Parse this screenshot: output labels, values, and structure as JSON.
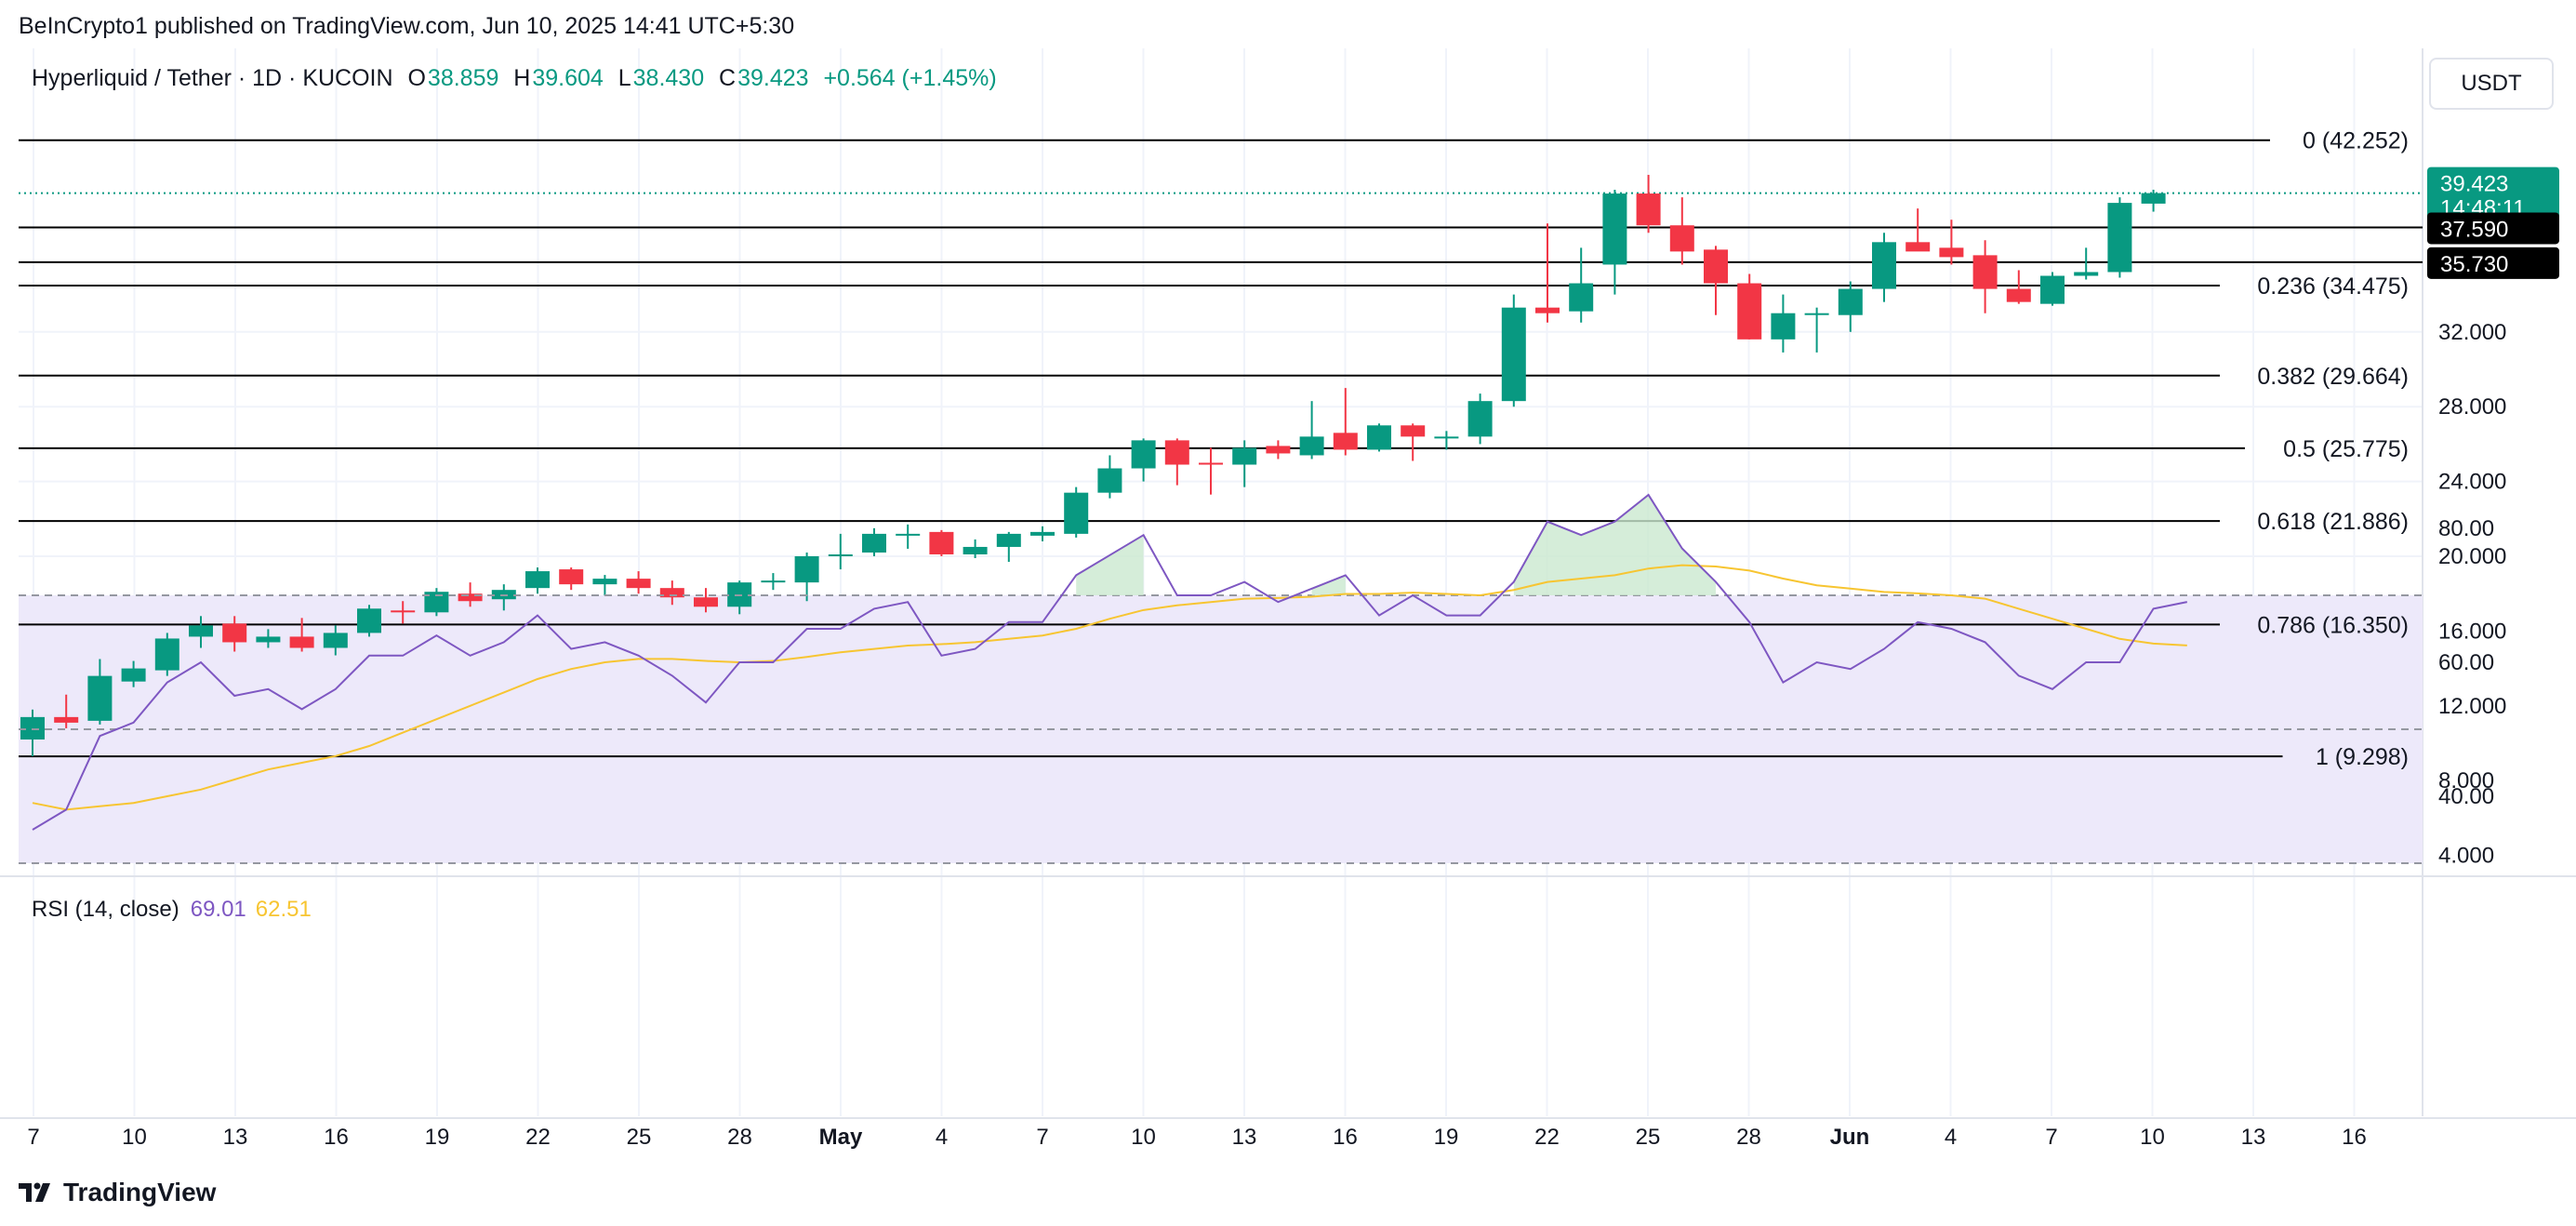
{
  "header": {
    "published": "BeInCrypto1 published on TradingView.com, Jun 10, 2025 14:41 UTC+5:30"
  },
  "symbol": {
    "title": "Hyperliquid / Tether · 1D · KUCOIN",
    "o_label": "O",
    "o": "38.859",
    "h_label": "H",
    "h": "39.604",
    "l_label": "L",
    "l": "38.430",
    "c_label": "C",
    "c": "39.423",
    "change": "+0.564 (+1.45%)"
  },
  "currency_button": "USDT",
  "price_labels": {
    "last_price": "39.423",
    "countdown": "14:48:11",
    "level_a": "37.590",
    "level_b": "35.730"
  },
  "colors": {
    "up": "#089981",
    "down": "#f23645",
    "rsi_line": "#7e57c2",
    "rsi_ma": "#f7c531",
    "rsi_band": "#ede9fa",
    "fib_line": "#000000"
  },
  "rsi": {
    "label": "RSI (14, close)",
    "value": "69.01",
    "ma_value": "62.51"
  },
  "footer": {
    "brand": "TradingView"
  },
  "chart_data": [
    {
      "type": "candlestick",
      "ylim": [
        4,
        44
      ],
      "y_ticks": [
        "4.000",
        "8.000",
        "12.000",
        "16.000",
        "20.000",
        "24.000",
        "28.000",
        "32.000"
      ],
      "x_ticks": [
        "7",
        "10",
        "13",
        "16",
        "19",
        "22",
        "25",
        "28",
        "May",
        "4",
        "7",
        "10",
        "13",
        "16",
        "19",
        "22",
        "25",
        "28",
        "Jun",
        "4",
        "7",
        "10",
        "13",
        "16"
      ],
      "fib_levels": [
        {
          "ratio": "0",
          "price": 42.252,
          "label": "0 (42.252)"
        },
        {
          "ratio": "0.236",
          "price": 34.475,
          "label": "0.236 (34.475)"
        },
        {
          "ratio": "0.382",
          "price": 29.664,
          "label": "0.382 (29.664)"
        },
        {
          "ratio": "0.5",
          "price": 25.775,
          "label": "0.5 (25.775)"
        },
        {
          "ratio": "0.618",
          "price": 21.886,
          "label": "0.618 (21.886)"
        },
        {
          "ratio": "0.786",
          "price": 16.35,
          "label": "0.786 (16.350)"
        },
        {
          "ratio": "1",
          "price": 9.298,
          "label": "1 (9.298)"
        }
      ],
      "horizontal_lines": [
        37.59,
        35.73
      ],
      "last_price": 39.423,
      "candles": [
        {
          "o": 10.2,
          "h": 11.8,
          "l": 9.3,
          "c": 11.4
        },
        {
          "o": 11.4,
          "h": 12.6,
          "l": 10.8,
          "c": 11.1
        },
        {
          "o": 11.2,
          "h": 14.5,
          "l": 11.0,
          "c": 13.6
        },
        {
          "o": 13.3,
          "h": 14.4,
          "l": 13.0,
          "c": 14.0
        },
        {
          "o": 13.9,
          "h": 15.9,
          "l": 13.6,
          "c": 15.6
        },
        {
          "o": 15.7,
          "h": 16.8,
          "l": 15.1,
          "c": 16.3
        },
        {
          "o": 16.4,
          "h": 16.8,
          "l": 14.9,
          "c": 15.4
        },
        {
          "o": 15.4,
          "h": 16.1,
          "l": 15.1,
          "c": 15.7
        },
        {
          "o": 15.7,
          "h": 16.7,
          "l": 14.9,
          "c": 15.1
        },
        {
          "o": 15.1,
          "h": 16.3,
          "l": 14.7,
          "c": 15.9
        },
        {
          "o": 15.9,
          "h": 17.4,
          "l": 15.7,
          "c": 17.2
        },
        {
          "o": 17.1,
          "h": 17.6,
          "l": 16.4,
          "c": 17.0
        },
        {
          "o": 17.0,
          "h": 18.3,
          "l": 16.8,
          "c": 18.1
        },
        {
          "o": 18.0,
          "h": 18.6,
          "l": 17.3,
          "c": 17.6
        },
        {
          "o": 17.7,
          "h": 18.5,
          "l": 17.1,
          "c": 18.2
        },
        {
          "o": 18.3,
          "h": 19.4,
          "l": 18.0,
          "c": 19.2
        },
        {
          "o": 19.3,
          "h": 19.4,
          "l": 18.2,
          "c": 18.5
        },
        {
          "o": 18.5,
          "h": 19.0,
          "l": 17.9,
          "c": 18.8
        },
        {
          "o": 18.8,
          "h": 19.2,
          "l": 18.0,
          "c": 18.3
        },
        {
          "o": 18.3,
          "h": 18.7,
          "l": 17.4,
          "c": 17.8
        },
        {
          "o": 17.8,
          "h": 18.3,
          "l": 17.0,
          "c": 17.3
        },
        {
          "o": 17.3,
          "h": 18.7,
          "l": 16.9,
          "c": 18.6
        },
        {
          "o": 18.6,
          "h": 19.1,
          "l": 18.2,
          "c": 18.7
        },
        {
          "o": 18.6,
          "h": 20.2,
          "l": 17.6,
          "c": 20.0
        },
        {
          "o": 20.0,
          "h": 21.2,
          "l": 19.3,
          "c": 20.1
        },
        {
          "o": 20.2,
          "h": 21.5,
          "l": 20.0,
          "c": 21.2
        },
        {
          "o": 21.2,
          "h": 21.7,
          "l": 20.4,
          "c": 21.2
        },
        {
          "o": 21.3,
          "h": 21.4,
          "l": 20.0,
          "c": 20.1
        },
        {
          "o": 20.1,
          "h": 20.9,
          "l": 19.9,
          "c": 20.5
        },
        {
          "o": 20.5,
          "h": 21.3,
          "l": 19.7,
          "c": 21.2
        },
        {
          "o": 21.1,
          "h": 21.6,
          "l": 20.8,
          "c": 21.3
        },
        {
          "o": 21.2,
          "h": 23.7,
          "l": 21.0,
          "c": 23.4
        },
        {
          "o": 23.4,
          "h": 25.4,
          "l": 23.1,
          "c": 24.7
        },
        {
          "o": 24.7,
          "h": 26.3,
          "l": 24.0,
          "c": 26.2
        },
        {
          "o": 26.2,
          "h": 26.3,
          "l": 23.8,
          "c": 24.9
        },
        {
          "o": 25.0,
          "h": 25.8,
          "l": 23.3,
          "c": 24.9
        },
        {
          "o": 24.9,
          "h": 26.2,
          "l": 23.7,
          "c": 25.8
        },
        {
          "o": 25.9,
          "h": 26.2,
          "l": 25.2,
          "c": 25.5
        },
        {
          "o": 25.4,
          "h": 28.3,
          "l": 25.2,
          "c": 26.4
        },
        {
          "o": 26.6,
          "h": 29.0,
          "l": 25.4,
          "c": 25.7
        },
        {
          "o": 25.7,
          "h": 27.1,
          "l": 25.6,
          "c": 27.0
        },
        {
          "o": 27.0,
          "h": 27.1,
          "l": 25.1,
          "c": 26.4
        },
        {
          "o": 26.3,
          "h": 26.7,
          "l": 25.7,
          "c": 26.4
        },
        {
          "o": 26.4,
          "h": 28.7,
          "l": 26.0,
          "c": 28.3
        },
        {
          "o": 28.3,
          "h": 34.0,
          "l": 28.0,
          "c": 33.3
        },
        {
          "o": 33.3,
          "h": 37.8,
          "l": 32.5,
          "c": 33.0
        },
        {
          "o": 33.1,
          "h": 36.5,
          "l": 32.5,
          "c": 34.6
        },
        {
          "o": 35.6,
          "h": 39.6,
          "l": 34.0,
          "c": 39.4
        },
        {
          "o": 39.4,
          "h": 40.4,
          "l": 37.3,
          "c": 37.7
        },
        {
          "o": 37.7,
          "h": 39.2,
          "l": 35.6,
          "c": 36.3
        },
        {
          "o": 36.4,
          "h": 36.6,
          "l": 32.9,
          "c": 34.6
        },
        {
          "o": 34.6,
          "h": 35.1,
          "l": 31.6,
          "c": 31.6
        },
        {
          "o": 31.6,
          "h": 34.0,
          "l": 30.9,
          "c": 33.0
        },
        {
          "o": 33.0,
          "h": 33.3,
          "l": 30.9,
          "c": 33.0
        },
        {
          "o": 32.9,
          "h": 34.7,
          "l": 32.0,
          "c": 34.3
        },
        {
          "o": 34.3,
          "h": 37.3,
          "l": 33.6,
          "c": 36.8
        },
        {
          "o": 36.8,
          "h": 38.6,
          "l": 36.4,
          "c": 36.3
        },
        {
          "o": 36.5,
          "h": 38.0,
          "l": 35.6,
          "c": 36.0
        },
        {
          "o": 36.1,
          "h": 36.9,
          "l": 33.0,
          "c": 34.3
        },
        {
          "o": 34.3,
          "h": 35.3,
          "l": 33.5,
          "c": 33.6
        },
        {
          "o": 33.5,
          "h": 35.2,
          "l": 33.4,
          "c": 35.0
        },
        {
          "o": 35.0,
          "h": 36.5,
          "l": 34.8,
          "c": 35.2
        },
        {
          "o": 35.2,
          "h": 39.2,
          "l": 34.9,
          "c": 38.9
        },
        {
          "o": 38.86,
          "h": 39.604,
          "l": 38.43,
          "c": 39.423
        }
      ]
    },
    {
      "type": "line",
      "name": "RSI (14, close)",
      "ylim": [
        20,
        92
      ],
      "y_ticks": [
        "40.00",
        "60.00",
        "80.00"
      ],
      "bands": [
        70,
        50,
        30
      ],
      "series": [
        {
          "name": "RSI",
          "values": [
            35,
            38,
            49,
            51,
            57,
            60,
            55,
            56,
            53,
            56,
            61,
            61,
            64,
            61,
            63,
            67,
            62,
            63,
            61,
            58,
            54,
            60,
            60,
            65,
            65,
            68,
            69,
            61,
            62,
            66,
            66,
            73,
            76,
            79,
            70,
            70,
            72,
            69,
            71,
            73,
            67,
            70,
            67,
            67,
            72,
            81,
            79,
            81,
            85,
            77,
            72,
            66,
            57,
            60,
            59,
            62,
            66,
            65,
            63,
            58,
            56,
            60,
            60,
            68,
            69.01
          ]
        },
        {
          "name": "RSI-based MA",
          "values": [
            39,
            38,
            38.5,
            39,
            40,
            41,
            42.5,
            44,
            45,
            46,
            47.5,
            49.5,
            51.5,
            53.5,
            55.5,
            57.5,
            59,
            60,
            60.5,
            60.5,
            60.2,
            60,
            60.2,
            60.8,
            61.5,
            62,
            62.5,
            62.7,
            63,
            63.5,
            64,
            65,
            66.5,
            67.8,
            68.5,
            69,
            69.5,
            69.6,
            69.8,
            70.2,
            70.2,
            70.4,
            70.2,
            70,
            70.8,
            72,
            72.5,
            73,
            74,
            74.5,
            74.3,
            73.7,
            72.5,
            71.5,
            71,
            70.5,
            70.3,
            70,
            69.5,
            68,
            66.5,
            65,
            63.5,
            62.8,
            62.51
          ]
        }
      ]
    }
  ]
}
